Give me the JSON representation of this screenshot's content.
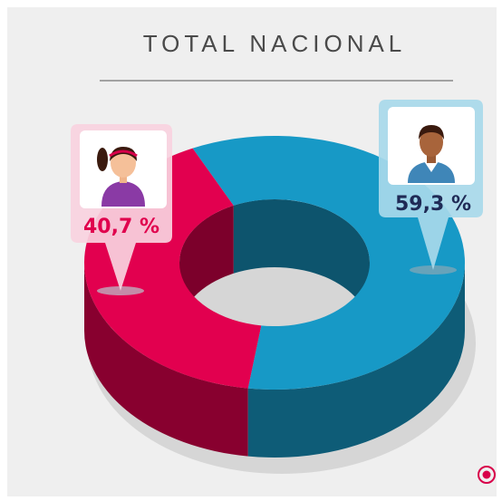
{
  "chart_data": {
    "type": "pie",
    "title": "TOTAL NACIONAL",
    "values": [
      40.7,
      59.3
    ],
    "value_labels": [
      "40,7 %",
      "59,3 %"
    ],
    "colors": [
      "#e2004f",
      "#1799c6"
    ]
  }
}
